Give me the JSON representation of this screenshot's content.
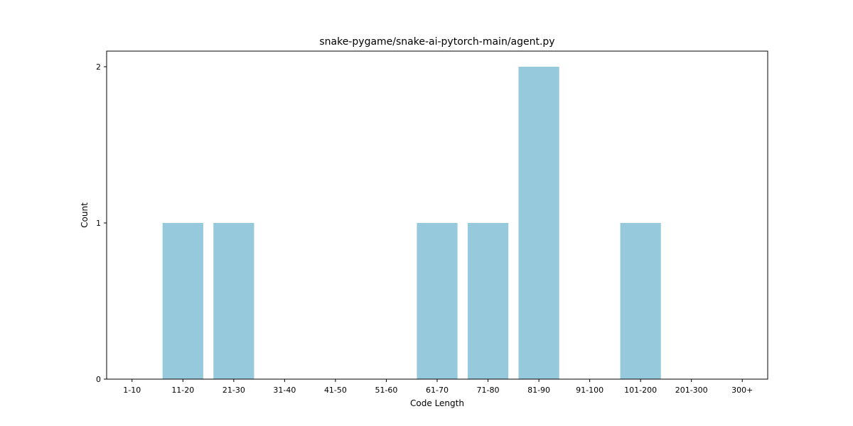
{
  "chart_data": {
    "type": "bar",
    "title": "snake-pygame/snake-ai-pytorch-main/agent.py",
    "xlabel": "Code Length",
    "ylabel": "Count",
    "categories": [
      "1-10",
      "11-20",
      "21-30",
      "31-40",
      "41-50",
      "51-60",
      "61-70",
      "71-80",
      "81-90",
      "91-100",
      "101-200",
      "201-300",
      "300+"
    ],
    "values": [
      0,
      1,
      1,
      0,
      0,
      0,
      1,
      1,
      2,
      0,
      1,
      0,
      0
    ],
    "ylim": [
      0,
      2.1
    ],
    "yticks": [
      0,
      1,
      2
    ],
    "bar_color": "#96c9dc",
    "grid": false,
    "legend": "none"
  }
}
